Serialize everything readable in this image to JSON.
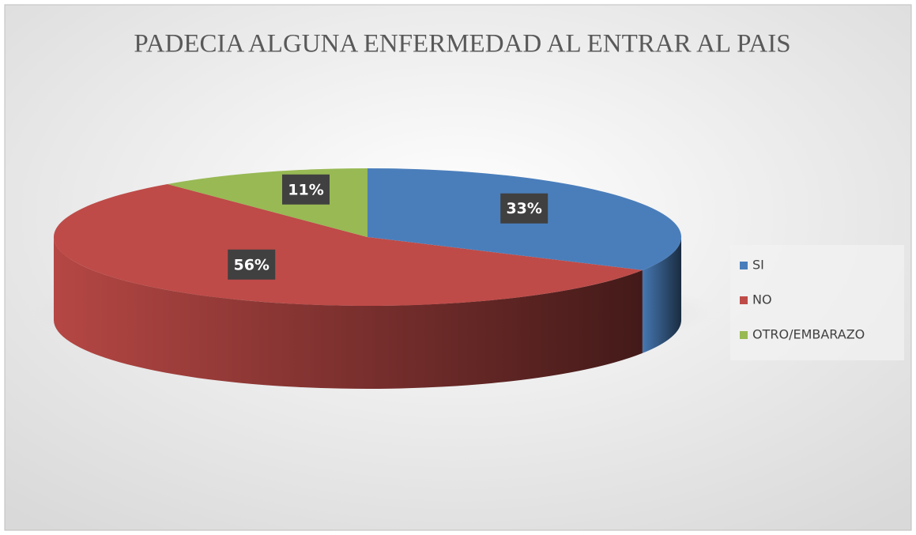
{
  "chart_data": {
    "type": "pie3d",
    "title": "PADECIA ALGUNA ENFERMEDAD AL ENTRAR AL PAIS",
    "categories": [
      "SI",
      "NO",
      "OTRO/EMBARAZO"
    ],
    "values": [
      33,
      56,
      11
    ],
    "value_labels": [
      "33%",
      "56%",
      "11%"
    ],
    "colors": [
      "#4a7ebb",
      "#be4b48",
      "#98b954"
    ],
    "legend": "right"
  }
}
